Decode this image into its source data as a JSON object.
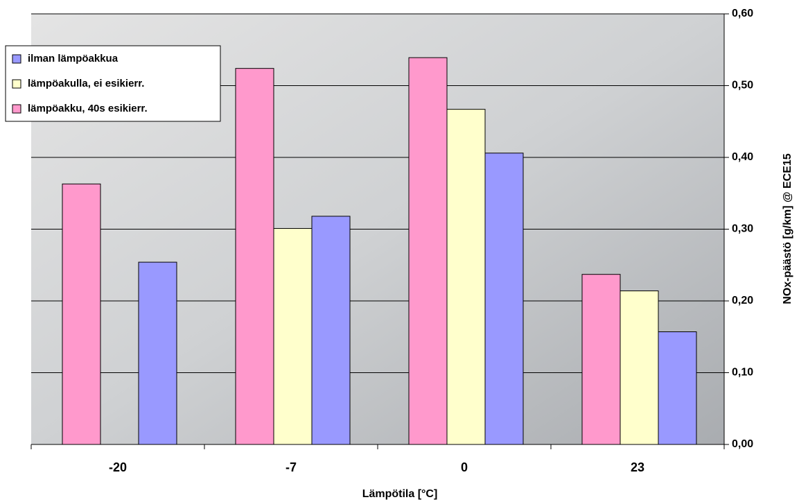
{
  "chart_data": {
    "type": "bar",
    "x_label": "Lämpötila [°C]",
    "y_label": "NOx-päästö [g/km] @ ECE15",
    "categories": [
      "-20",
      "-7",
      "0",
      "23"
    ],
    "series": [
      {
        "name": "lämpöakku, 40s esikierr.",
        "color": "#ff99cc",
        "values": [
          0.363,
          0.524,
          0.539,
          0.237
        ]
      },
      {
        "name": "lämpöakulla, ei esikierr.",
        "color": "#ffffcc",
        "values": [
          null,
          0.301,
          0.467,
          0.214
        ]
      },
      {
        "name": "ilman lämpöakkua",
        "color": "#9999ff",
        "values": [
          0.254,
          0.318,
          0.406,
          0.157
        ]
      }
    ],
    "ylim": [
      0,
      0.6
    ],
    "yticks": [
      {
        "value": 0,
        "label": "0,00"
      },
      {
        "value": 0.1,
        "label": "0,10"
      },
      {
        "value": 0.2,
        "label": "0,20"
      },
      {
        "value": 0.3,
        "label": "0,30"
      },
      {
        "value": 0.4,
        "label": "0,40"
      },
      {
        "value": 0.5,
        "label": "0,50"
      },
      {
        "value": 0.6,
        "label": "0,60"
      }
    ],
    "grid": true,
    "legend": "upper-left"
  }
}
